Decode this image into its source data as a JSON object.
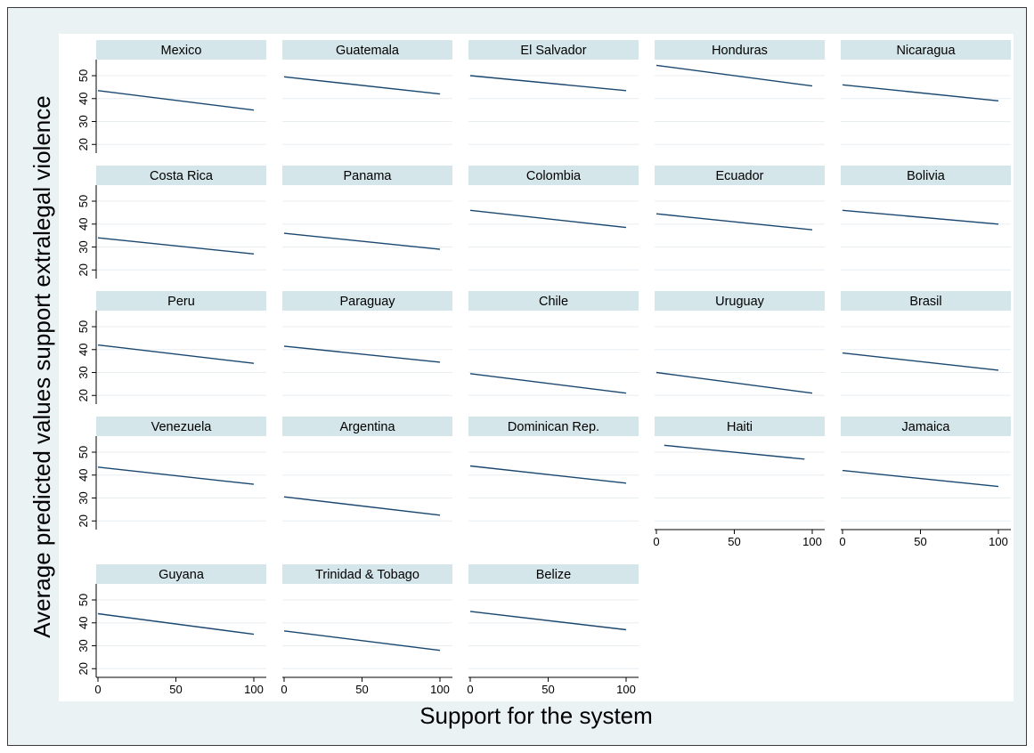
{
  "chart_data": {
    "type": "line",
    "xlabel": "Support for the system",
    "ylabel": "Average predicted values support extralegal violence",
    "xlim": [
      0,
      100
    ],
    "ylim": [
      17,
      57
    ],
    "xticks": [
      0,
      50,
      100
    ],
    "yticks": [
      20,
      30,
      40,
      50
    ],
    "grid": true,
    "colors": {
      "outer_background": "#eaf2f3",
      "plot_background": "#ffffff",
      "strip": "#d5e6eb",
      "line": "#1a476f",
      "grid": "#e8eef0"
    },
    "panels": [
      {
        "name": "Mexico",
        "x": [
          0,
          100
        ],
        "y": [
          43.5,
          35
        ]
      },
      {
        "name": "Guatemala",
        "x": [
          0,
          100
        ],
        "y": [
          49.5,
          42
        ]
      },
      {
        "name": "El Salvador",
        "x": [
          0,
          100
        ],
        "y": [
          50,
          43.5
        ]
      },
      {
        "name": "Honduras",
        "x": [
          0,
          100
        ],
        "y": [
          54.5,
          45.5
        ]
      },
      {
        "name": "Nicaragua",
        "x": [
          0,
          100
        ],
        "y": [
          46,
          39
        ]
      },
      {
        "name": "Costa Rica",
        "x": [
          0,
          100
        ],
        "y": [
          34,
          27
        ]
      },
      {
        "name": "Panama",
        "x": [
          0,
          100
        ],
        "y": [
          36,
          29
        ]
      },
      {
        "name": "Colombia",
        "x": [
          0,
          100
        ],
        "y": [
          46,
          38.5
        ]
      },
      {
        "name": "Ecuador",
        "x": [
          0,
          100
        ],
        "y": [
          44.5,
          37.5
        ]
      },
      {
        "name": "Bolivia",
        "x": [
          0,
          100
        ],
        "y": [
          46,
          40
        ]
      },
      {
        "name": "Peru",
        "x": [
          0,
          100
        ],
        "y": [
          42,
          34
        ]
      },
      {
        "name": "Paraguay",
        "x": [
          0,
          100
        ],
        "y": [
          41.5,
          34.5
        ]
      },
      {
        "name": "Chile",
        "x": [
          0,
          100
        ],
        "y": [
          29.5,
          21
        ]
      },
      {
        "name": "Uruguay",
        "x": [
          0,
          100
        ],
        "y": [
          30,
          21
        ]
      },
      {
        "name": "Brasil",
        "x": [
          0,
          100
        ],
        "y": [
          38.5,
          31
        ]
      },
      {
        "name": "Venezuela",
        "x": [
          0,
          100
        ],
        "y": [
          43.5,
          36
        ]
      },
      {
        "name": "Argentina",
        "x": [
          0,
          100
        ],
        "y": [
          30.5,
          22.5
        ]
      },
      {
        "name": "Dominican Rep.",
        "x": [
          0,
          100
        ],
        "y": [
          44,
          36.5
        ]
      },
      {
        "name": "Haiti",
        "x": [
          5,
          95
        ],
        "y": [
          53,
          47
        ]
      },
      {
        "name": "Jamaica",
        "x": [
          0,
          100
        ],
        "y": [
          42,
          35
        ]
      },
      {
        "name": "Guyana",
        "x": [
          0,
          100
        ],
        "y": [
          44,
          35
        ]
      },
      {
        "name": "Trinidad & Tobago",
        "x": [
          0,
          100
        ],
        "y": [
          36.5,
          28
        ]
      },
      {
        "name": "Belize",
        "x": [
          0,
          100
        ],
        "y": [
          45,
          37
        ]
      }
    ]
  }
}
